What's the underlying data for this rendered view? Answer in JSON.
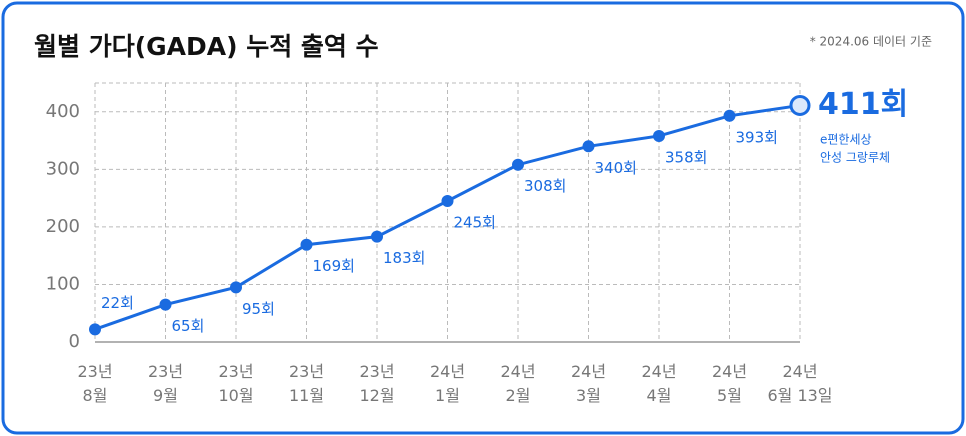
{
  "chart_data": {
    "type": "line",
    "title": "월별 가다(GADA) 누적 출역 수",
    "note": "* 2024.06 데이터 기준",
    "categories": [
      "23년\n8월",
      "23년\n9월",
      "23년\n10월",
      "23년\n11월",
      "23년\n12월",
      "24년\n1월",
      "24년\n2월",
      "24년\n3월",
      "24년\n4월",
      "24년\n5월",
      "24년\n6월 13일"
    ],
    "series": [
      {
        "name": "누적 출역 수",
        "color": "#1a6be0",
        "values": [
          22,
          65,
          95,
          169,
          183,
          245,
          308,
          340,
          358,
          393,
          411
        ],
        "value_labels": [
          "22회",
          "65회",
          "95회",
          "169회",
          "183회",
          "245회",
          "308회",
          "340회",
          "358회",
          "393회",
          "411회"
        ]
      }
    ],
    "annotation": [
      "e편한세상",
      "안성 그랑루체"
    ],
    "ylim": [
      0,
      450
    ],
    "yticks": [
      0,
      100,
      200,
      300,
      400
    ],
    "grid": true
  }
}
